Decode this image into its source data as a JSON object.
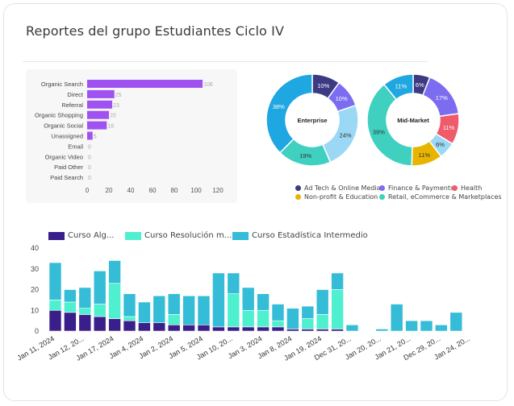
{
  "header": {
    "title": "Reportes del grupo Estudiantes Ciclo IV"
  },
  "colors": {
    "purple_bar": "#a052f0",
    "ad_tech": "#3c3a82",
    "finance": "#7b6cf0",
    "health": "#ef5b6b",
    "nonprofit": "#e8b400",
    "retail": "#3fd0c0",
    "enterprise_extra": "#9ad8f5",
    "enterprise_main": "#1ea7e0",
    "curso_alg": "#3a1e8a",
    "curso_res": "#4ff0cf",
    "curso_est": "#35bcd6"
  },
  "chart_data": [
    {
      "type": "bar",
      "orientation": "horizontal",
      "categories": [
        "Organic Search",
        "Direct",
        "Referral",
        "Organic Shopping",
        "Organic Social",
        "Unassigned",
        "Email",
        "Organic Video",
        "Paid Other",
        "Paid Search"
      ],
      "values": [
        106,
        25,
        23,
        20,
        18,
        5,
        0,
        0,
        0,
        0
      ],
      "xlim": [
        0,
        120
      ],
      "x_ticks": [
        "0",
        "20",
        "40",
        "60",
        "80",
        "100",
        "120"
      ]
    },
    {
      "type": "pie",
      "center_label": "Enterprise",
      "slices": [
        {
          "label": "Ad Tech & Online Media",
          "value": 10,
          "text": "10%",
          "color": "#3c3a82"
        },
        {
          "label": "Finance & Payments",
          "value": 10,
          "text": "10%",
          "color": "#7b6cf0"
        },
        {
          "label": "",
          "value": 24,
          "text": "24%",
          "color": "#9ad8f5"
        },
        {
          "label": "Retail, eCommerce & Marketplaces",
          "value": 19,
          "text": "19%",
          "color": "#3fd0c0"
        },
        {
          "label": "",
          "value": 38,
          "text": "38%",
          "color": "#1ea7e0"
        }
      ]
    },
    {
      "type": "pie",
      "center_label": "Mid-Market",
      "slices": [
        {
          "label": "Ad Tech & Online Media",
          "value": 6,
          "text": "6%",
          "color": "#3c3a82"
        },
        {
          "label": "Finance & Payments",
          "value": 17,
          "text": "17%",
          "color": "#7b6cf0"
        },
        {
          "label": "Health",
          "value": 11,
          "text": "11%",
          "color": "#ef5b6b"
        },
        {
          "label": "",
          "value": 6,
          "text": "6%",
          "color": "#9ad8f5"
        },
        {
          "label": "Non-profit & Education",
          "value": 11,
          "text": "11%",
          "color": "#e8b400"
        },
        {
          "label": "Retail, eCommerce & Marketplaces",
          "value": 39,
          "text": "39%",
          "color": "#3fd0c0"
        },
        {
          "label": "",
          "value": 11,
          "text": "11%",
          "color": "#1ea7e0"
        }
      ],
      "legend": [
        {
          "label": "Ad Tech & Online Media",
          "color": "#3c3a82"
        },
        {
          "label": "Finance & Payments",
          "color": "#7b6cf0"
        },
        {
          "label": "Health",
          "color": "#ef5b6b"
        },
        {
          "label": "Non-profit & Education",
          "color": "#e8b400"
        },
        {
          "label": "Retail, eCommerce & Marketplaces",
          "color": "#3fd0c0"
        }
      ]
    },
    {
      "type": "bar",
      "stacked": true,
      "ylim": [
        0,
        40
      ],
      "y_ticks": [
        "0",
        "10",
        "20",
        "30",
        "40"
      ],
      "x_tick_labels": [
        "Jan 11, 2024",
        "Jan 12, 20...",
        "Jan 17, 2024",
        "Jan 4, 2024",
        "Jan 2, 2024",
        "Jan 5, 2024",
        "Jan 10, 20...",
        "Jan 3, 2024",
        "Jan 8, 2024",
        "Jan 19, 2024",
        "Dec 31, 20...",
        "Jan 20, 20...",
        "Jan 21, 20...",
        "Dec 29, 20...",
        "Jan 24, 20..."
      ],
      "series": [
        {
          "name": "Curso Alg...",
          "color": "#3a1e8a",
          "values": [
            10,
            9,
            8,
            7,
            6,
            5,
            4,
            4,
            3,
            3,
            3,
            2,
            2,
            2,
            2,
            2,
            1,
            1,
            1,
            1,
            0,
            0,
            0,
            0,
            0,
            0,
            0,
            0,
            0
          ]
        },
        {
          "name": "Curso Resolución m...",
          "color": "#4ff0cf",
          "values": [
            5,
            5,
            3,
            6,
            17,
            2,
            0,
            0,
            5,
            0,
            0,
            0,
            16,
            8,
            8,
            3,
            0,
            5,
            7,
            19,
            0,
            0,
            0,
            0,
            0,
            0,
            0,
            0,
            0
          ]
        },
        {
          "name": "Curso Estadística Intermedio",
          "color": "#35bcd6",
          "values": [
            18,
            6,
            10,
            16,
            11,
            11,
            10,
            13,
            10,
            14,
            14,
            26,
            10,
            11,
            8,
            8,
            10,
            6,
            12,
            8,
            3,
            0,
            1,
            13,
            5,
            5,
            3,
            9,
            0
          ]
        }
      ]
    }
  ],
  "pie_legend_items": [
    {
      "label": "Ad Tech & Online Media",
      "color": "#3c3a82"
    },
    {
      "label": "Finance & Payments",
      "color": "#7b6cf0"
    },
    {
      "label": "Health",
      "color": "#ef5b6b"
    },
    {
      "label": "Non-profit & Education",
      "color": "#e8b400"
    },
    {
      "label": "Retail, eCommerce & Marketplaces",
      "color": "#3fd0c0"
    }
  ]
}
